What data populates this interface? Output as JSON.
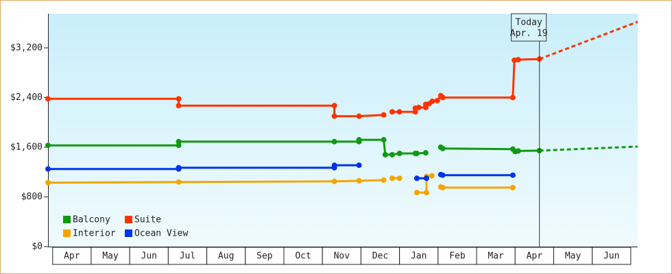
{
  "chart_data": {
    "type": "line",
    "xlim": [
      -0.12,
      15.18
    ],
    "xticks": [
      {
        "value": 0.5,
        "label": "Apr"
      },
      {
        "value": 1.5,
        "label": "May"
      },
      {
        "value": 2.5,
        "label": "Jun"
      },
      {
        "value": 3.5,
        "label": "Jul"
      },
      {
        "value": 4.5,
        "label": "Aug"
      },
      {
        "value": 5.5,
        "label": "Sep"
      },
      {
        "value": 6.5,
        "label": "Oct"
      },
      {
        "value": 7.5,
        "label": "Nov"
      },
      {
        "value": 8.5,
        "label": "Dec"
      },
      {
        "value": 9.5,
        "label": "Jan"
      },
      {
        "value": 10.5,
        "label": "Feb"
      },
      {
        "value": 11.5,
        "label": "Mar"
      },
      {
        "value": 12.5,
        "label": "Apr"
      },
      {
        "value": 13.5,
        "label": "May"
      },
      {
        "value": 14.5,
        "label": "Jun"
      }
    ],
    "ylim": [
      0,
      3750
    ],
    "yticks": [
      {
        "value": 0,
        "label": "$0"
      },
      {
        "value": 800,
        "label": "$800"
      },
      {
        "value": 1600,
        "label": "$1,600"
      },
      {
        "value": 2400,
        "label": "$2,400"
      },
      {
        "value": 3200,
        "label": "$3,200"
      }
    ],
    "legend": "lower left",
    "annotation": {
      "x": 12.63,
      "lines": [
        "Today",
        "Apr. 19"
      ]
    },
    "series": [
      {
        "name": "Balcony",
        "color": "#119911",
        "x": [
          -0.12,
          3.27,
          3.27,
          7.31,
          7.95,
          7.95,
          8.59,
          8.63,
          8.81,
          9.0,
          9.41,
          9.45,
          9.68,
          null,
          10.07,
          10.12,
          11.94,
          12.0,
          12.08,
          12.63
        ],
        "values": [
          1630,
          1630,
          1690,
          1690,
          1690,
          1720,
          1720,
          1480,
          1480,
          1500,
          1500,
          1500,
          1510,
          null,
          1600,
          1580,
          1570,
          1530,
          1540,
          1545
        ],
        "projection": {
          "x": [
            12.63,
            15.18
          ],
          "values": [
            1545,
            1610
          ]
        }
      },
      {
        "name": "Suite",
        "color": "#ff3300",
        "x": [
          -0.12,
          3.27,
          3.27,
          7.31,
          7.31,
          7.95,
          8.59,
          null,
          8.81,
          9.0,
          9.41,
          9.41,
          9.5,
          9.68,
          9.68,
          9.77,
          9.85,
          9.98,
          10.07,
          10.12,
          11.94,
          11.98,
          12.08,
          12.63
        ],
        "values": [
          2380,
          2380,
          2270,
          2270,
          2100,
          2100,
          2120,
          null,
          2170,
          2170,
          2170,
          2230,
          2240,
          2240,
          2290,
          2300,
          2340,
          2350,
          2430,
          2400,
          2400,
          3000,
          3010,
          3020
        ],
        "projection": {
          "x": [
            12.63,
            15.18
          ],
          "values": [
            3020,
            3620
          ]
        }
      },
      {
        "name": "Interior",
        "color": "#f5a500",
        "x": [
          -0.12,
          3.27,
          7.31,
          7.95,
          8.59,
          null,
          8.81,
          9.0,
          null,
          9.45,
          9.7,
          9.7,
          9.84,
          null,
          10.07,
          10.12,
          11.94
        ],
        "values": [
          1030,
          1040,
          1050,
          1060,
          1070,
          null,
          1100,
          1100,
          null,
          870,
          870,
          1130,
          1140,
          null,
          960,
          950,
          950
        ]
      },
      {
        "name": "Ocean View",
        "color": "#0033ee",
        "x": [
          -0.12,
          3.27,
          3.27,
          7.31,
          7.31,
          7.95,
          null,
          9.45,
          9.7,
          null,
          10.07,
          10.12,
          11.94
        ],
        "values": [
          1250,
          1250,
          1270,
          1270,
          1310,
          1310,
          null,
          1100,
          1100,
          null,
          1160,
          1150,
          1150
        ]
      }
    ]
  }
}
